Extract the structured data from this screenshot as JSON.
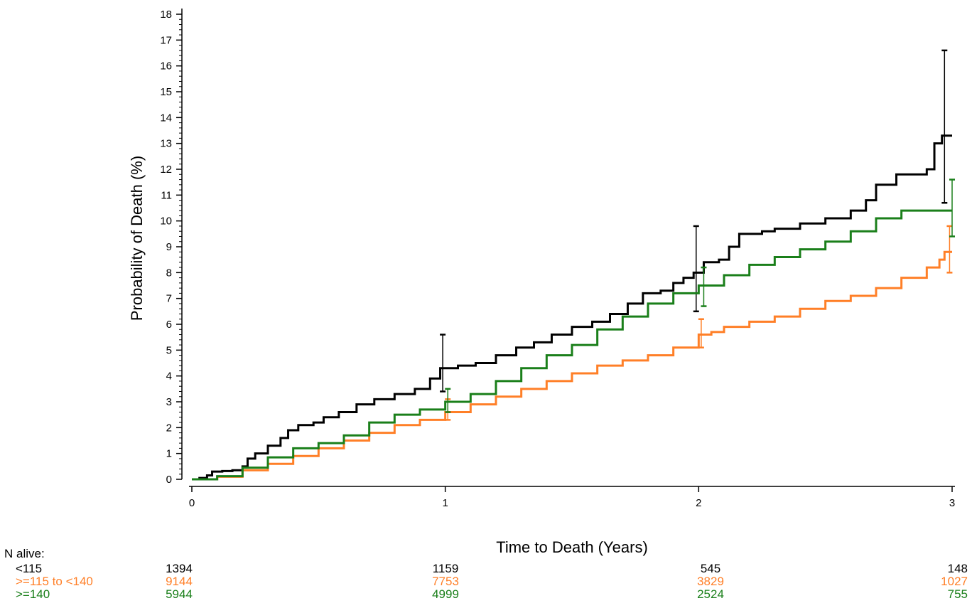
{
  "chart_data": {
    "type": "line",
    "title": "",
    "xlabel": "Time to Death (Years)",
    "ylabel": "Probability of Death (%)",
    "xlim": [
      0,
      3
    ],
    "ylim": [
      0,
      18
    ],
    "x_ticks": [
      0,
      1,
      2,
      3
    ],
    "y_ticks": [
      0,
      1,
      2,
      3,
      4,
      5,
      6,
      7,
      8,
      9,
      10,
      11,
      12,
      13,
      14,
      15,
      16,
      17,
      18
    ],
    "grid": false,
    "legend": "none",
    "series": [
      {
        "color": "#000000",
        "points": [
          [
            0,
            0
          ],
          [
            0.03,
            0.05
          ],
          [
            0.06,
            0.15
          ],
          [
            0.08,
            0.3
          ],
          [
            0.12,
            0.32
          ],
          [
            0.16,
            0.35
          ],
          [
            0.2,
            0.5
          ],
          [
            0.22,
            0.8
          ],
          [
            0.25,
            1.0
          ],
          [
            0.3,
            1.3
          ],
          [
            0.35,
            1.6
          ],
          [
            0.38,
            1.9
          ],
          [
            0.42,
            2.1
          ],
          [
            0.48,
            2.2
          ],
          [
            0.52,
            2.4
          ],
          [
            0.58,
            2.6
          ],
          [
            0.65,
            2.9
          ],
          [
            0.72,
            3.1
          ],
          [
            0.8,
            3.3
          ],
          [
            0.88,
            3.5
          ],
          [
            0.94,
            3.9
          ],
          [
            0.98,
            4.3
          ],
          [
            1.05,
            4.4
          ],
          [
            1.12,
            4.5
          ],
          [
            1.2,
            4.8
          ],
          [
            1.28,
            5.1
          ],
          [
            1.35,
            5.3
          ],
          [
            1.42,
            5.6
          ],
          [
            1.5,
            5.9
          ],
          [
            1.58,
            6.1
          ],
          [
            1.65,
            6.4
          ],
          [
            1.72,
            6.8
          ],
          [
            1.78,
            7.2
          ],
          [
            1.85,
            7.3
          ],
          [
            1.9,
            7.6
          ],
          [
            1.94,
            7.8
          ],
          [
            1.98,
            8.0
          ],
          [
            2.02,
            8.4
          ],
          [
            2.08,
            8.5
          ],
          [
            2.12,
            9.0
          ],
          [
            2.16,
            9.5
          ],
          [
            2.25,
            9.6
          ],
          [
            2.3,
            9.7
          ],
          [
            2.4,
            9.9
          ],
          [
            2.5,
            10.1
          ],
          [
            2.6,
            10.4
          ],
          [
            2.66,
            10.8
          ],
          [
            2.7,
            11.4
          ],
          [
            2.78,
            11.8
          ],
          [
            2.9,
            12.0
          ],
          [
            2.93,
            13.0
          ],
          [
            2.96,
            13.3
          ],
          [
            3.0,
            13.3
          ]
        ],
        "ci": [
          {
            "x": 0.99,
            "lo": 3.4,
            "hi": 5.6
          },
          {
            "x": 1.99,
            "lo": 6.5,
            "hi": 9.8
          },
          {
            "x": 2.97,
            "lo": 10.7,
            "hi": 16.6
          }
        ]
      },
      {
        "color": "#ff7f27",
        "points": [
          [
            0,
            0
          ],
          [
            0.1,
            0.1
          ],
          [
            0.2,
            0.35
          ],
          [
            0.3,
            0.6
          ],
          [
            0.4,
            0.9
          ],
          [
            0.5,
            1.2
          ],
          [
            0.6,
            1.5
          ],
          [
            0.7,
            1.8
          ],
          [
            0.8,
            2.1
          ],
          [
            0.9,
            2.3
          ],
          [
            1.0,
            2.6
          ],
          [
            1.1,
            2.9
          ],
          [
            1.2,
            3.2
          ],
          [
            1.3,
            3.5
          ],
          [
            1.4,
            3.8
          ],
          [
            1.5,
            4.1
          ],
          [
            1.6,
            4.4
          ],
          [
            1.7,
            4.6
          ],
          [
            1.8,
            4.8
          ],
          [
            1.9,
            5.1
          ],
          [
            2.0,
            5.6
          ],
          [
            2.05,
            5.7
          ],
          [
            2.1,
            5.9
          ],
          [
            2.2,
            6.1
          ],
          [
            2.3,
            6.3
          ],
          [
            2.4,
            6.6
          ],
          [
            2.5,
            6.9
          ],
          [
            2.6,
            7.1
          ],
          [
            2.7,
            7.4
          ],
          [
            2.8,
            7.8
          ],
          [
            2.9,
            8.2
          ],
          [
            2.95,
            8.5
          ],
          [
            2.97,
            8.8
          ],
          [
            3.0,
            8.8
          ]
        ],
        "ci": [
          {
            "x": 1.01,
            "lo": 2.3,
            "hi": 3.1
          },
          {
            "x": 2.01,
            "lo": 5.1,
            "hi": 6.2
          },
          {
            "x": 2.99,
            "lo": 8.0,
            "hi": 9.8
          }
        ]
      },
      {
        "color": "#1a7f1a",
        "points": [
          [
            0,
            0
          ],
          [
            0.1,
            0.12
          ],
          [
            0.2,
            0.45
          ],
          [
            0.3,
            0.85
          ],
          [
            0.4,
            1.2
          ],
          [
            0.5,
            1.4
          ],
          [
            0.6,
            1.7
          ],
          [
            0.7,
            2.2
          ],
          [
            0.8,
            2.5
          ],
          [
            0.9,
            2.7
          ],
          [
            1.0,
            3.0
          ],
          [
            1.1,
            3.3
          ],
          [
            1.2,
            3.8
          ],
          [
            1.3,
            4.3
          ],
          [
            1.4,
            4.8
          ],
          [
            1.5,
            5.2
          ],
          [
            1.6,
            5.8
          ],
          [
            1.7,
            6.3
          ],
          [
            1.8,
            6.8
          ],
          [
            1.9,
            7.2
          ],
          [
            2.0,
            7.5
          ],
          [
            2.1,
            7.9
          ],
          [
            2.2,
            8.3
          ],
          [
            2.3,
            8.6
          ],
          [
            2.4,
            8.9
          ],
          [
            2.5,
            9.2
          ],
          [
            2.6,
            9.6
          ],
          [
            2.7,
            10.1
          ],
          [
            2.8,
            10.4
          ],
          [
            3.0,
            10.4
          ]
        ],
        "ci": [
          {
            "x": 1.01,
            "lo": 2.6,
            "hi": 3.5
          },
          {
            "x": 2.02,
            "lo": 6.7,
            "hi": 8.2
          },
          {
            "x": 3.0,
            "lo": 9.4,
            "hi": 11.6
          }
        ]
      }
    ],
    "risk_table": {
      "header": "N alive:",
      "rows": [
        {
          "label": "<115",
          "color": "#000000",
          "counts": [
            "1394",
            "1159",
            "545",
            "148"
          ]
        },
        {
          "label": ">=115 to <140",
          "color": "#ff7f27",
          "counts": [
            "9144",
            "7753",
            "3829",
            "1027"
          ]
        },
        {
          "label": ">=140",
          "color": "#1a7f1a",
          "counts": [
            "5944",
            "4999",
            "2524",
            "755"
          ]
        }
      ]
    }
  }
}
